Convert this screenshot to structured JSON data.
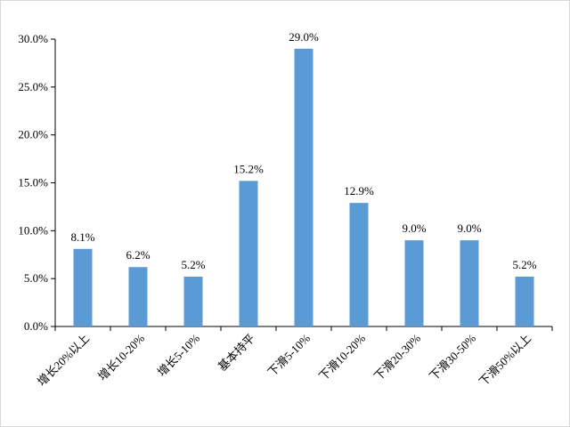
{
  "chart_data": {
    "type": "bar",
    "categories": [
      "增长20%以上",
      "增长10-20%",
      "增长5-10%",
      "基本持平",
      "下滑5-10%",
      "下滑10-20%",
      "下滑20-30%",
      "下滑30-50%",
      "下滑50%以上"
    ],
    "values": [
      8.1,
      6.2,
      5.2,
      15.2,
      29.0,
      12.9,
      9.0,
      9.0,
      5.2
    ],
    "data_labels": [
      "8.1%",
      "6.2%",
      "5.2%",
      "15.2%",
      "29.0%",
      "12.9%",
      "9.0%",
      "9.0%",
      "5.2%"
    ],
    "y_ticks": [
      0,
      5,
      10,
      15,
      20,
      25,
      30
    ],
    "y_tick_labels": [
      "0.0%",
      "5.0%",
      "10.0%",
      "15.0%",
      "20.0%",
      "25.0%",
      "30.0%"
    ],
    "ylim": [
      0,
      30
    ],
    "bar_color": "#5b9bd5",
    "grid": false,
    "legend": "none"
  }
}
